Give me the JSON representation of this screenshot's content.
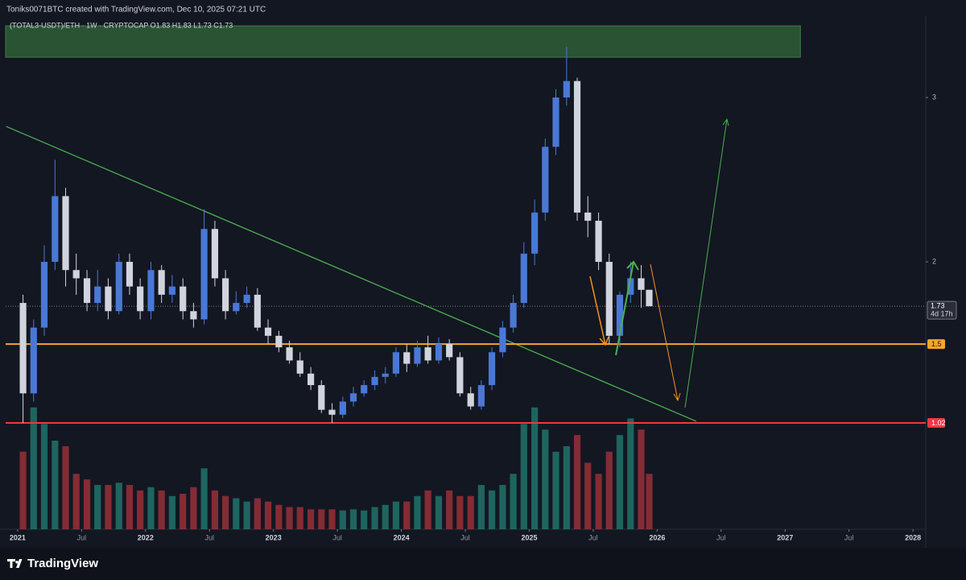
{
  "chart_data": {
    "type": "candlestick",
    "header": "Toniks0071BTC created with TradingView.com, Dec 10, 2025 07:21 UTC",
    "legend": "(TOTAL3-USDT)/ETH · 1W · CRYPTOCAP  O1.83  H1.83  L1.73  C1.73",
    "brand": "TradingView",
    "x": [
      2021.042,
      2021.125,
      2021.208,
      2021.292,
      2021.375,
      2021.458,
      2021.542,
      2021.625,
      2021.708,
      2021.792,
      2021.875,
      2021.958,
      2022.042,
      2022.125,
      2022.208,
      2022.292,
      2022.375,
      2022.458,
      2022.542,
      2022.625,
      2022.708,
      2022.792,
      2022.875,
      2022.958,
      2023.042,
      2023.125,
      2023.208,
      2023.292,
      2023.375,
      2023.458,
      2023.542,
      2023.625,
      2023.708,
      2023.792,
      2023.875,
      2023.958,
      2024.042,
      2024.125,
      2024.208,
      2024.292,
      2024.375,
      2024.458,
      2024.542,
      2024.625,
      2024.708,
      2024.792,
      2024.875,
      2024.958,
      2025.042,
      2025.125,
      2025.208,
      2025.292,
      2025.375,
      2025.458,
      2025.542,
      2025.625,
      2025.708,
      2025.792,
      2025.875,
      2025.938
    ],
    "open": [
      1.75,
      1.2,
      1.6,
      2.0,
      2.4,
      1.95,
      1.9,
      1.75,
      1.85,
      1.7,
      2.0,
      1.85,
      1.7,
      1.95,
      1.8,
      1.85,
      1.7,
      1.65,
      2.2,
      1.9,
      1.7,
      1.75,
      1.8,
      1.6,
      1.55,
      1.48,
      1.4,
      1.32,
      1.25,
      1.1,
      1.07,
      1.15,
      1.2,
      1.25,
      1.3,
      1.32,
      1.45,
      1.38,
      1.48,
      1.4,
      1.5,
      1.42,
      1.2,
      1.12,
      1.25,
      1.45,
      1.6,
      1.75,
      2.05,
      2.3,
      2.7,
      3.0,
      3.1,
      2.3,
      2.25,
      2.0,
      1.55,
      1.8,
      1.9,
      1.83
    ],
    "high": [
      1.8,
      1.65,
      2.1,
      2.62,
      2.45,
      2.05,
      1.95,
      1.95,
      1.9,
      2.05,
      2.05,
      1.9,
      2.0,
      1.98,
      1.92,
      1.9,
      1.75,
      2.32,
      2.25,
      1.95,
      1.82,
      1.85,
      1.84,
      1.65,
      1.58,
      1.52,
      1.45,
      1.36,
      1.28,
      1.14,
      1.18,
      1.24,
      1.28,
      1.34,
      1.36,
      1.48,
      1.5,
      1.52,
      1.55,
      1.54,
      1.53,
      1.45,
      1.24,
      1.28,
      1.48,
      1.64,
      1.8,
      2.12,
      2.38,
      2.75,
      3.05,
      3.31,
      3.12,
      2.4,
      2.3,
      2.05,
      1.82,
      2.0,
      1.98,
      1.83
    ],
    "low": [
      1.02,
      1.15,
      1.55,
      1.95,
      1.85,
      1.8,
      1.7,
      1.7,
      1.65,
      1.68,
      1.8,
      1.65,
      1.65,
      1.75,
      1.75,
      1.65,
      1.6,
      1.62,
      1.85,
      1.65,
      1.68,
      1.72,
      1.58,
      1.5,
      1.45,
      1.38,
      1.3,
      1.22,
      1.08,
      1.02,
      1.05,
      1.12,
      1.18,
      1.22,
      1.26,
      1.3,
      1.33,
      1.36,
      1.38,
      1.38,
      1.4,
      1.18,
      1.1,
      1.1,
      1.22,
      1.42,
      1.57,
      1.72,
      1.98,
      2.25,
      2.65,
      2.95,
      2.25,
      2.15,
      1.95,
      1.5,
      1.48,
      1.75,
      1.72,
      1.73
    ],
    "close": [
      1.2,
      1.6,
      2.0,
      2.4,
      1.95,
      1.9,
      1.75,
      1.85,
      1.7,
      2.0,
      1.85,
      1.7,
      1.95,
      1.8,
      1.85,
      1.7,
      1.65,
      2.2,
      1.9,
      1.7,
      1.75,
      1.8,
      1.6,
      1.55,
      1.48,
      1.4,
      1.32,
      1.25,
      1.1,
      1.07,
      1.15,
      1.2,
      1.25,
      1.3,
      1.32,
      1.45,
      1.38,
      1.48,
      1.4,
      1.5,
      1.42,
      1.2,
      1.12,
      1.25,
      1.45,
      1.6,
      1.75,
      2.05,
      2.3,
      2.7,
      3.0,
      3.1,
      2.3,
      2.25,
      2.0,
      1.55,
      1.8,
      1.9,
      1.83,
      1.73
    ],
    "volume": [
      70,
      110,
      95,
      80,
      75,
      50,
      45,
      40,
      40,
      42,
      40,
      35,
      38,
      35,
      30,
      32,
      38,
      55,
      35,
      30,
      28,
      25,
      28,
      25,
      22,
      20,
      20,
      18,
      18,
      18,
      17,
      18,
      17,
      20,
      22,
      25,
      25,
      30,
      35,
      30,
      35,
      30,
      30,
      40,
      35,
      40,
      50,
      95,
      110,
      90,
      70,
      75,
      85,
      60,
      50,
      70,
      85,
      100,
      90,
      50
    ],
    "volume_ylim": [
      0,
      160
    ],
    "up_color": "#4a78d6",
    "down_color": "#d1d4dc",
    "volume_up_color": "#22796f",
    "volume_down_color": "#a3313a",
    "xlim": [
      2020.906,
      2028.1
    ],
    "xticks": [
      2021,
      {
        "value": 2021.5,
        "label": "Jul"
      },
      2022,
      {
        "value": 2022.5,
        "label": "Jul"
      },
      2023,
      {
        "value": 2023.5,
        "label": "Jul"
      },
      2024,
      {
        "value": 2024.5,
        "label": "Jul"
      },
      2025,
      {
        "value": 2025.5,
        "label": "Jul"
      },
      2026,
      {
        "value": 2026.5,
        "label": "Jul"
      },
      2027,
      {
        "value": 2027.5,
        "label": "Jul"
      },
      2028
    ],
    "ylim": [
      0.373,
      3.456
    ],
    "yticks": [
      2,
      3
    ],
    "zone": {
      "xlim": [
        2020.906,
        2027.12
      ],
      "ylim": [
        3.245,
        3.436
      ],
      "color": "#2e5e36"
    },
    "trendline": {
      "x": [
        2020.91,
        2026.305
      ],
      "y": [
        2.824,
        1.03
      ],
      "color": "#4caf50"
    },
    "levels": [
      {
        "value": 1.5,
        "label": "1.5",
        "color": "#f5a623"
      },
      {
        "value": 1.02,
        "label": "1.02",
        "color": "#f23645"
      }
    ],
    "last_price": {
      "value": 1.73,
      "countdown": "4d 17h"
    }
  }
}
